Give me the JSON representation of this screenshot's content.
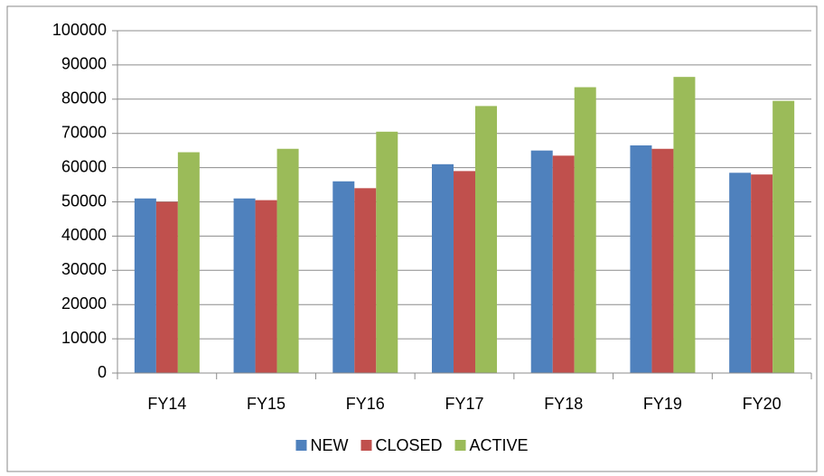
{
  "chart_data": {
    "type": "bar",
    "categories": [
      "FY14",
      "FY15",
      "FY16",
      "FY17",
      "FY18",
      "FY19",
      "FY20"
    ],
    "series": [
      {
        "name": "NEW",
        "color": "#4f81bd",
        "values": [
          51000,
          51000,
          56000,
          61000,
          65000,
          66500,
          58500
        ]
      },
      {
        "name": "CLOSED",
        "color": "#c0504d",
        "values": [
          50000,
          50500,
          54000,
          59000,
          63500,
          65500,
          58000
        ]
      },
      {
        "name": "ACTIVE",
        "color": "#9bbb59",
        "values": [
          64500,
          65500,
          70500,
          78000,
          83500,
          86500,
          79500
        ]
      }
    ],
    "ylim": [
      0,
      100000
    ],
    "yticks": [
      0,
      10000,
      20000,
      30000,
      40000,
      50000,
      60000,
      70000,
      80000,
      90000,
      100000
    ],
    "grid": true,
    "legend": "bottom"
  }
}
